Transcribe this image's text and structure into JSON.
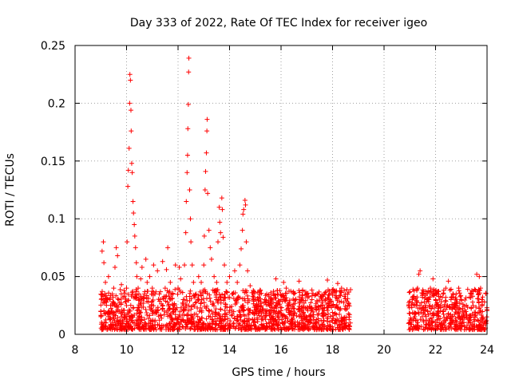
{
  "chart_data": {
    "type": "scatter",
    "title": "Day 333 of 2022, Rate Of TEC Index for receiver igeo",
    "xlabel": "GPS time / hours",
    "ylabel": "ROTI / TECUs",
    "xlim": [
      8,
      24
    ],
    "ylim": [
      0,
      0.25
    ],
    "x_ticks": [
      "8",
      "10",
      "12",
      "14",
      "16",
      "18",
      "20",
      "22",
      "24"
    ],
    "y_ticks": [
      "0",
      "0.05",
      "0.1",
      "0.15",
      "0.2",
      "0.25"
    ],
    "grid": true,
    "marker": "+",
    "color": "#ff0000",
    "series": [
      {
        "points": [
          [
            9.0,
            0.02
          ],
          [
            9.05,
            0.072
          ],
          [
            9.1,
            0.08
          ],
          [
            9.12,
            0.062
          ],
          [
            9.18,
            0.045
          ],
          [
            9.25,
            0.03
          ],
          [
            9.3,
            0.05
          ],
          [
            9.38,
            0.025
          ],
          [
            9.45,
            0.035
          ],
          [
            9.5,
            0.04
          ],
          [
            9.55,
            0.058
          ],
          [
            9.6,
            0.075
          ],
          [
            9.65,
            0.068
          ],
          [
            9.7,
            0.03
          ],
          [
            9.8,
            0.043
          ],
          [
            9.9,
            0.038
          ],
          [
            9.95,
            0.028
          ],
          [
            10.0,
            0.04
          ],
          [
            10.02,
            0.08
          ],
          [
            10.05,
            0.128
          ],
          [
            10.07,
            0.142
          ],
          [
            10.1,
            0.161
          ],
          [
            10.12,
            0.2
          ],
          [
            10.13,
            0.225
          ],
          [
            10.15,
            0.22
          ],
          [
            10.17,
            0.194
          ],
          [
            10.18,
            0.176
          ],
          [
            10.2,
            0.148
          ],
          [
            10.22,
            0.14
          ],
          [
            10.25,
            0.115
          ],
          [
            10.27,
            0.105
          ],
          [
            10.3,
            0.095
          ],
          [
            10.32,
            0.085
          ],
          [
            10.35,
            0.075
          ],
          [
            10.38,
            0.062
          ],
          [
            10.4,
            0.05
          ],
          [
            10.45,
            0.04
          ],
          [
            10.5,
            0.03
          ],
          [
            10.55,
            0.048
          ],
          [
            10.6,
            0.058
          ],
          [
            10.7,
            0.035
          ],
          [
            10.75,
            0.065
          ],
          [
            10.8,
            0.045
          ],
          [
            10.85,
            0.028
          ],
          [
            10.9,
            0.05
          ],
          [
            11.0,
            0.04
          ],
          [
            11.05,
            0.06
          ],
          [
            11.1,
            0.035
          ],
          [
            11.2,
            0.055
          ],
          [
            11.3,
            0.03
          ],
          [
            11.4,
            0.063
          ],
          [
            11.5,
            0.04
          ],
          [
            11.55,
            0.056
          ],
          [
            11.6,
            0.075
          ],
          [
            11.7,
            0.045
          ],
          [
            11.8,
            0.035
          ],
          [
            11.9,
            0.06
          ],
          [
            12.0,
            0.04
          ],
          [
            12.05,
            0.058
          ],
          [
            12.1,
            0.048
          ],
          [
            12.2,
            0.03
          ],
          [
            12.25,
            0.06
          ],
          [
            12.3,
            0.088
          ],
          [
            12.32,
            0.115
          ],
          [
            12.35,
            0.14
          ],
          [
            12.37,
            0.155
          ],
          [
            12.38,
            0.178
          ],
          [
            12.4,
            0.199
          ],
          [
            12.41,
            0.227
          ],
          [
            12.42,
            0.239
          ],
          [
            12.45,
            0.125
          ],
          [
            12.48,
            0.1
          ],
          [
            12.5,
            0.08
          ],
          [
            12.55,
            0.06
          ],
          [
            12.6,
            0.045
          ],
          [
            12.7,
            0.035
          ],
          [
            12.8,
            0.05
          ],
          [
            12.9,
            0.045
          ],
          [
            13.0,
            0.06
          ],
          [
            13.02,
            0.085
          ],
          [
            13.05,
            0.125
          ],
          [
            13.07,
            0.141
          ],
          [
            13.1,
            0.157
          ],
          [
            13.12,
            0.176
          ],
          [
            13.13,
            0.186
          ],
          [
            13.15,
            0.122
          ],
          [
            13.2,
            0.09
          ],
          [
            13.25,
            0.075
          ],
          [
            13.3,
            0.065
          ],
          [
            13.4,
            0.05
          ],
          [
            13.5,
            0.045
          ],
          [
            13.55,
            0.08
          ],
          [
            13.6,
            0.11
          ],
          [
            13.62,
            0.097
          ],
          [
            13.65,
            0.088
          ],
          [
            13.7,
            0.118
          ],
          [
            13.72,
            0.108
          ],
          [
            13.75,
            0.084
          ],
          [
            13.8,
            0.06
          ],
          [
            13.9,
            0.045
          ],
          [
            14.0,
            0.05
          ],
          [
            14.1,
            0.035
          ],
          [
            14.2,
            0.055
          ],
          [
            14.3,
            0.045
          ],
          [
            14.4,
            0.06
          ],
          [
            14.45,
            0.074
          ],
          [
            14.5,
            0.09
          ],
          [
            14.52,
            0.104
          ],
          [
            14.55,
            0.108
          ],
          [
            14.6,
            0.116
          ],
          [
            14.62,
            0.112
          ],
          [
            14.65,
            0.08
          ],
          [
            14.7,
            0.055
          ],
          [
            14.8,
            0.042
          ],
          [
            14.9,
            0.033
          ],
          [
            15.0,
            0.03
          ],
          [
            15.2,
            0.038
          ],
          [
            15.4,
            0.028
          ],
          [
            15.6,
            0.036
          ],
          [
            15.8,
            0.048
          ],
          [
            16.0,
            0.03
          ],
          [
            16.1,
            0.045
          ],
          [
            16.2,
            0.04
          ],
          [
            16.3,
            0.025
          ],
          [
            16.5,
            0.035
          ],
          [
            16.7,
            0.046
          ],
          [
            16.8,
            0.03
          ],
          [
            17.0,
            0.022
          ],
          [
            17.2,
            0.03
          ],
          [
            17.4,
            0.035
          ],
          [
            17.6,
            0.028
          ],
          [
            17.8,
            0.047
          ],
          [
            17.9,
            0.03
          ],
          [
            18.0,
            0.034
          ],
          [
            18.2,
            0.044
          ],
          [
            18.35,
            0.04
          ],
          [
            18.5,
            0.035
          ],
          [
            18.6,
            0.025
          ],
          [
            18.65,
            0.015
          ],
          [
            21.0,
            0.018
          ],
          [
            21.1,
            0.03
          ],
          [
            21.2,
            0.025
          ],
          [
            21.3,
            0.04
          ],
          [
            21.35,
            0.052
          ],
          [
            21.4,
            0.055
          ],
          [
            21.5,
            0.035
          ],
          [
            21.6,
            0.025
          ],
          [
            21.7,
            0.03
          ],
          [
            21.8,
            0.04
          ],
          [
            21.9,
            0.048
          ],
          [
            22.0,
            0.03
          ],
          [
            22.1,
            0.037
          ],
          [
            22.2,
            0.025
          ],
          [
            22.3,
            0.035
          ],
          [
            22.4,
            0.04
          ],
          [
            22.5,
            0.046
          ],
          [
            22.6,
            0.03
          ],
          [
            22.7,
            0.025
          ],
          [
            22.8,
            0.035
          ],
          [
            22.9,
            0.04
          ],
          [
            23.0,
            0.03
          ],
          [
            23.2,
            0.025
          ],
          [
            23.4,
            0.035
          ],
          [
            23.6,
            0.052
          ],
          [
            23.7,
            0.05
          ],
          [
            23.75,
            0.04
          ],
          [
            23.8,
            0.03
          ],
          [
            23.9,
            0.028
          ]
        ]
      }
    ]
  }
}
